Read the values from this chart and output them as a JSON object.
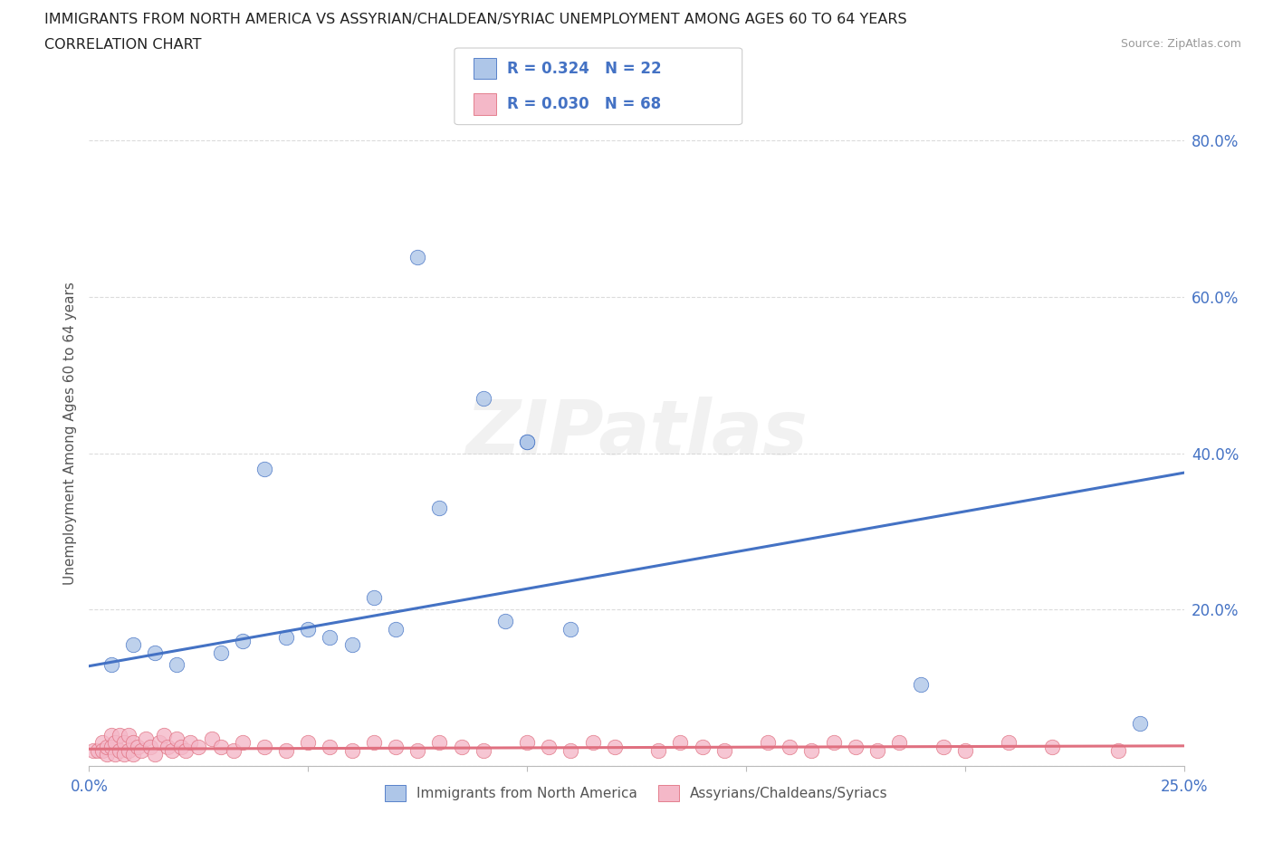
{
  "title_line1": "IMMIGRANTS FROM NORTH AMERICA VS ASSYRIAN/CHALDEAN/SYRIAC UNEMPLOYMENT AMONG AGES 60 TO 64 YEARS",
  "title_line2": "CORRELATION CHART",
  "source_text": "Source: ZipAtlas.com",
  "ylabel": "Unemployment Among Ages 60 to 64 years",
  "xlim": [
    0.0,
    0.25
  ],
  "ylim": [
    0.0,
    0.85
  ],
  "xticks": [
    0.0,
    0.05,
    0.1,
    0.15,
    0.2,
    0.25
  ],
  "xticklabels": [
    "0.0%",
    "",
    "",
    "",
    "",
    "25.0%"
  ],
  "yticks": [
    0.0,
    0.2,
    0.4,
    0.6,
    0.8
  ],
  "yticklabels": [
    "",
    "20.0%",
    "40.0%",
    "60.0%",
    "80.0%"
  ],
  "watermark": "ZIPatlas",
  "legend1_R": "0.324",
  "legend1_N": "22",
  "legend2_R": "0.030",
  "legend2_N": "68",
  "series1_color": "#aec6e8",
  "series2_color": "#f4b8c8",
  "line1_color": "#4472c4",
  "line2_color": "#e07080",
  "legend1_label": "Immigrants from North America",
  "legend2_label": "Assyrians/Chaldeans/Syriacs",
  "series1_x": [
    0.005,
    0.01,
    0.015,
    0.02,
    0.03,
    0.035,
    0.04,
    0.045,
    0.05,
    0.055,
    0.06,
    0.065,
    0.07,
    0.075,
    0.08,
    0.09,
    0.095,
    0.1,
    0.1,
    0.11,
    0.19,
    0.24
  ],
  "series1_y": [
    0.13,
    0.155,
    0.145,
    0.13,
    0.145,
    0.16,
    0.38,
    0.165,
    0.175,
    0.165,
    0.155,
    0.215,
    0.175,
    0.65,
    0.33,
    0.47,
    0.185,
    0.415,
    0.415,
    0.175,
    0.105,
    0.055
  ],
  "series2_x": [
    0.001,
    0.002,
    0.003,
    0.003,
    0.004,
    0.004,
    0.005,
    0.005,
    0.006,
    0.006,
    0.007,
    0.007,
    0.008,
    0.008,
    0.009,
    0.009,
    0.01,
    0.01,
    0.011,
    0.012,
    0.013,
    0.014,
    0.015,
    0.016,
    0.017,
    0.018,
    0.019,
    0.02,
    0.021,
    0.022,
    0.023,
    0.025,
    0.028,
    0.03,
    0.033,
    0.035,
    0.04,
    0.045,
    0.05,
    0.055,
    0.06,
    0.065,
    0.07,
    0.075,
    0.08,
    0.085,
    0.09,
    0.1,
    0.105,
    0.11,
    0.115,
    0.12,
    0.13,
    0.135,
    0.14,
    0.145,
    0.155,
    0.16,
    0.165,
    0.17,
    0.175,
    0.18,
    0.185,
    0.195,
    0.2,
    0.21,
    0.22,
    0.235
  ],
  "series2_y": [
    0.02,
    0.02,
    0.03,
    0.02,
    0.015,
    0.025,
    0.04,
    0.025,
    0.015,
    0.03,
    0.02,
    0.04,
    0.015,
    0.03,
    0.02,
    0.04,
    0.015,
    0.03,
    0.025,
    0.02,
    0.035,
    0.025,
    0.015,
    0.03,
    0.04,
    0.025,
    0.02,
    0.035,
    0.025,
    0.02,
    0.03,
    0.025,
    0.035,
    0.025,
    0.02,
    0.03,
    0.025,
    0.02,
    0.03,
    0.025,
    0.02,
    0.03,
    0.025,
    0.02,
    0.03,
    0.025,
    0.02,
    0.03,
    0.025,
    0.02,
    0.03,
    0.025,
    0.02,
    0.03,
    0.025,
    0.02,
    0.03,
    0.025,
    0.02,
    0.03,
    0.025,
    0.02,
    0.03,
    0.025,
    0.02,
    0.03,
    0.025,
    0.02
  ],
  "trendline1_x": [
    0.0,
    0.25
  ],
  "trendline1_y": [
    0.128,
    0.375
  ],
  "trendline2_x": [
    0.0,
    0.25
  ],
  "trendline2_y": [
    0.022,
    0.026
  ],
  "grid_color": "#cccccc",
  "background_color": "#ffffff"
}
